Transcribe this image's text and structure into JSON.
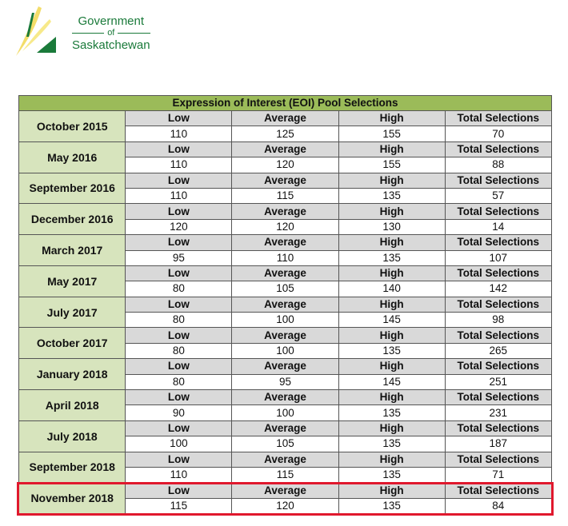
{
  "logo": {
    "line1": "Government",
    "line2": "of",
    "line3": "Saskatchewan"
  },
  "table": {
    "title": "Expression of Interest (EOI) Pool Selections",
    "headers": [
      "Low",
      "Average",
      "High",
      "Total Selections"
    ],
    "rows": [
      {
        "date": "October 2015",
        "values": [
          "110",
          "125",
          "155",
          "70"
        ]
      },
      {
        "date": "May 2016",
        "values": [
          "110",
          "120",
          "155",
          "88"
        ]
      },
      {
        "date": "September 2016",
        "values": [
          "110",
          "115",
          "135",
          "57"
        ]
      },
      {
        "date": "December 2016",
        "values": [
          "120",
          "120",
          "130",
          "14"
        ]
      },
      {
        "date": "March 2017",
        "values": [
          "95",
          "110",
          "135",
          "107"
        ]
      },
      {
        "date": "May 2017",
        "values": [
          "80",
          "105",
          "140",
          "142"
        ]
      },
      {
        "date": "July 2017",
        "values": [
          "80",
          "100",
          "145",
          "98"
        ]
      },
      {
        "date": "October 2017",
        "values": [
          "80",
          "100",
          "135",
          "265"
        ]
      },
      {
        "date": "January 2018",
        "values": [
          "80",
          "95",
          "145",
          "251"
        ]
      },
      {
        "date": "April 2018",
        "values": [
          "90",
          "100",
          "135",
          "231"
        ]
      },
      {
        "date": "July 2018",
        "values": [
          "100",
          "105",
          "135",
          "187"
        ]
      },
      {
        "date": "September 2018",
        "values": [
          "110",
          "115",
          "135",
          "71"
        ]
      },
      {
        "date": "November 2018",
        "values": [
          "115",
          "120",
          "135",
          "84"
        ]
      }
    ]
  },
  "highlight_color": "#e0182d"
}
